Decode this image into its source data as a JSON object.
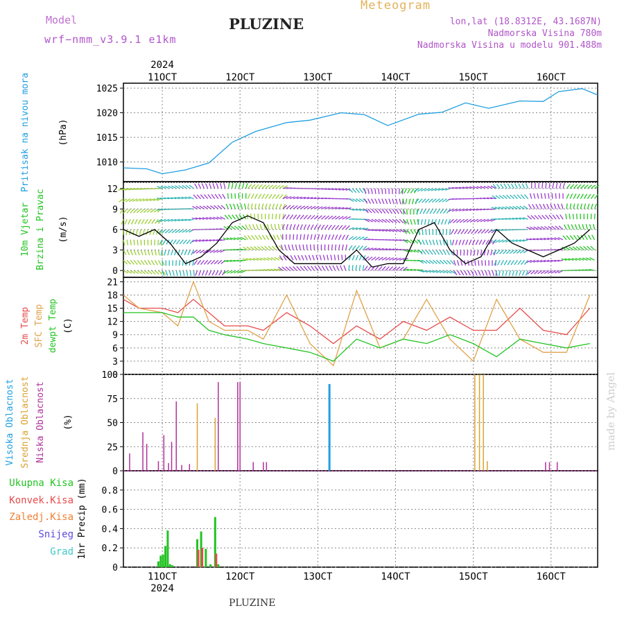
{
  "header": {
    "model_label": "Model",
    "model_value": "wrf−nmm_v3.9.1  e1km",
    "title": "PLUZINE",
    "subtitle": "Meteogram",
    "coords": "lon,lat (18.8312E, 43.1687N)",
    "altitude": "Nadmorska Visina 780m",
    "model_altitude": "Nadmorska Visina u modelu 901.488m"
  },
  "footer": {
    "station": "PLUZINE"
  },
  "credit": "made by Angel",
  "x_axis": {
    "year": "2024",
    "ticks": [
      "11OCT",
      "12OCT",
      "13OCT",
      "14OCT",
      "15OCT",
      "16OCT"
    ]
  },
  "colors": {
    "pressure": "#1f9ee0",
    "wind_speed": "#000000",
    "temp2m": "#e84a4a",
    "sfc_temp": "#e0a24a",
    "dewpt": "#22c322",
    "visoka": "#1f9ee0",
    "srednja": "#d9a230",
    "niska": "#b0309a",
    "ukupna": "#22c322",
    "konvek": "#e84a4a",
    "zaledj": "#f07f30",
    "snijeg": "#5a4ae0",
    "grad": "#40c8c8"
  },
  "chart_data": [
    {
      "type": "line",
      "panel": "pressure",
      "ylabel": [
        "Pritisak na nivou mora",
        "(hPa)"
      ],
      "ylim": [
        1006,
        1026
      ],
      "yticks": [
        1010,
        1015,
        1020,
        1025
      ],
      "series": [
        {
          "x": [
            10.5,
            10.8,
            11.0,
            11.3,
            11.6,
            11.9,
            12.2,
            12.6,
            12.9,
            13.3,
            13.6,
            13.9,
            14.3,
            14.6,
            14.9,
            15.2,
            15.6,
            15.9,
            16.1,
            16.4,
            16.6
          ],
          "values": [
            1008.8,
            1008.6,
            1007.6,
            1008.4,
            1009.8,
            1014.0,
            1016.2,
            1018.0,
            1018.5,
            1020.0,
            1019.6,
            1017.4,
            1019.7,
            1020.1,
            1022.0,
            1020.9,
            1022.4,
            1022.3,
            1024.3,
            1024.9,
            1023.6
          ]
        }
      ]
    },
    {
      "type": "line",
      "panel": "wind",
      "ylabel": [
        "10m Vjetar",
        "Brzina i Pravac",
        "(m/s)"
      ],
      "ylim": [
        -1,
        13
      ],
      "yticks": [
        0,
        3,
        6,
        9,
        12
      ],
      "series": [
        {
          "name": "wind_speed",
          "x": [
            10.5,
            10.7,
            10.9,
            11.1,
            11.3,
            11.5,
            11.7,
            11.9,
            12.1,
            12.3,
            12.5,
            12.7,
            12.9,
            13.1,
            13.3,
            13.5,
            13.7,
            13.9,
            14.1,
            14.3,
            14.5,
            14.7,
            14.9,
            15.1,
            15.3,
            15.5,
            15.7,
            15.9,
            16.1,
            16.3,
            16.5
          ],
          "values": [
            6,
            5,
            6,
            4,
            1,
            2,
            4,
            7,
            8,
            7,
            3,
            1,
            1,
            1,
            1,
            3,
            0.5,
            1,
            1,
            6,
            7,
            3,
            1,
            2,
            6,
            4,
            3,
            2,
            3,
            4,
            6
          ]
        }
      ]
    },
    {
      "type": "line",
      "panel": "temperature",
      "ylabel": [
        "2m Temp",
        "SFC Temp",
        "dewpt Temp",
        "(C)"
      ],
      "ylim": [
        0,
        22
      ],
      "yticks": [
        0,
        3,
        6,
        9,
        12,
        15,
        18,
        21
      ],
      "series": [
        {
          "name": "2m Temp",
          "x": [
            10.5,
            10.7,
            11.0,
            11.2,
            11.4,
            11.6,
            11.8,
            12.1,
            12.3,
            12.6,
            12.9,
            13.2,
            13.5,
            13.8,
            14.1,
            14.4,
            14.7,
            15.0,
            15.3,
            15.6,
            15.9,
            16.2,
            16.5
          ],
          "values": [
            17,
            15,
            15,
            14,
            17,
            14,
            11,
            11,
            10,
            14,
            11,
            7,
            11,
            8,
            12,
            10,
            13,
            10,
            10,
            15,
            10,
            9,
            15
          ]
        },
        {
          "name": "SFC Temp",
          "x": [
            10.5,
            10.7,
            11.0,
            11.2,
            11.4,
            11.6,
            11.8,
            12.1,
            12.3,
            12.6,
            12.9,
            13.2,
            13.5,
            13.8,
            14.1,
            14.4,
            14.7,
            15.0,
            15.3,
            15.6,
            15.9,
            16.2,
            16.5
          ],
          "values": [
            18,
            15,
            14,
            11,
            21,
            12,
            10,
            10,
            8,
            18,
            7,
            2,
            19,
            6,
            8,
            17,
            8,
            3,
            17,
            8,
            5,
            5,
            18
          ]
        },
        {
          "name": "dewpt Temp",
          "x": [
            10.5,
            10.7,
            11.0,
            11.2,
            11.4,
            11.6,
            11.8,
            12.1,
            12.3,
            12.6,
            12.9,
            13.2,
            13.5,
            13.8,
            14.1,
            14.4,
            14.7,
            15.0,
            15.3,
            15.6,
            15.9,
            16.2,
            16.5
          ],
          "values": [
            14,
            14,
            14,
            13,
            13,
            10,
            9,
            8,
            7,
            6,
            5,
            3,
            8,
            6,
            8,
            7,
            9,
            7,
            4,
            8,
            7,
            6,
            7
          ]
        }
      ]
    },
    {
      "type": "bar",
      "panel": "clouds",
      "ylabel": [
        "Visoka Oblacnost",
        "Srednja Oblacnost",
        "Niska Oblacnost",
        "(%)"
      ],
      "ylim": [
        0,
        100
      ],
      "yticks": [
        0,
        25,
        50,
        75,
        100
      ],
      "series": [
        {
          "name": "Visoka Oblacnost",
          "x": [
            13.15
          ],
          "values": [
            90
          ]
        },
        {
          "name": "Srednja Oblacnost",
          "x": [
            11.45,
            11.68,
            15.02,
            15.08,
            15.13,
            15.18
          ],
          "values": [
            70,
            55,
            100,
            100,
            100,
            10
          ]
        },
        {
          "name": "Niska Oblacnost",
          "x": [
            10.58,
            10.75,
            10.8,
            10.95,
            11.02,
            11.08,
            11.12,
            11.18,
            11.25,
            11.35,
            11.72,
            11.97,
            12.0,
            12.17,
            12.3,
            12.34,
            15.93,
            15.98,
            16.08
          ],
          "values": [
            18,
            40,
            28,
            10,
            37,
            8,
            30,
            72,
            6,
            7,
            92,
            92,
            92,
            9,
            9,
            9,
            9,
            9,
            9
          ]
        }
      ]
    },
    {
      "type": "bar",
      "panel": "precip",
      "ylabel": [
        "1hr Precip (mm)"
      ],
      "legend": [
        "Ukupna Kisa",
        "Konvek.Kisa",
        "Zaledj.Kisa",
        "Snijeg",
        "Grad"
      ],
      "ylim": [
        0,
        1.0
      ],
      "yticks": [
        0,
        0.2,
        0.4,
        0.6,
        0.8
      ],
      "series": [
        {
          "name": "Ukupna Kisa",
          "x": [
            10.95,
            10.98,
            11.01,
            11.04,
            11.07,
            11.1,
            11.13,
            11.45,
            11.5,
            11.56,
            11.62,
            11.68,
            11.72
          ],
          "values": [
            0.06,
            0.12,
            0.13,
            0.22,
            0.38,
            0.03,
            0.02,
            0.29,
            0.37,
            0.19,
            0.03,
            0.52,
            0.03
          ]
        },
        {
          "name": "Konvek.Kisa",
          "x": [
            11.45,
            11.5,
            11.68
          ],
          "values": [
            0.18,
            0.2,
            0.14
          ]
        }
      ]
    }
  ]
}
